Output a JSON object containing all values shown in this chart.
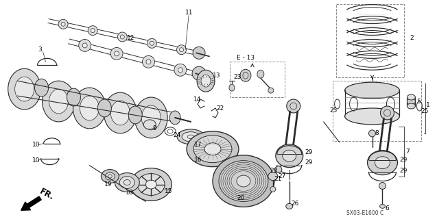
{
  "bg_color": "#ffffff",
  "diagram_color": "#2a2a2a",
  "label_color": "#000000",
  "label_fontsize": 6.5,
  "watermark": "SX03-E1600 C",
  "arrow_label": "FR.",
  "e13_label": "E - 13",
  "fig_w": 6.37,
  "fig_h": 3.2,
  "dpi": 100,
  "xlim": [
    0,
    637
  ],
  "ylim": [
    0,
    320
  ]
}
